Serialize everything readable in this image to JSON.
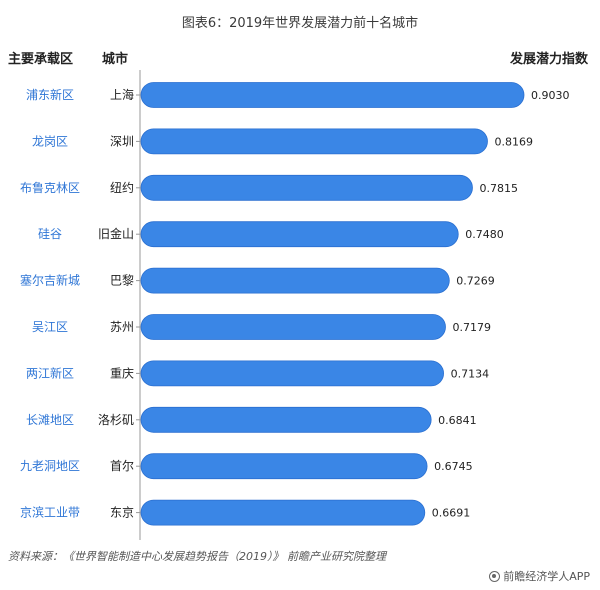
{
  "header": {
    "title": "图表6：2019年世界发展潜力前十名城市",
    "col_zone": "主要承载区",
    "col_city": "城市",
    "col_value": "发展潜力指数"
  },
  "colors": {
    "bar": "#3a86e6",
    "bar_edge": "#2a6fd0",
    "zone_text": "#2f76d6",
    "axis": "#999999"
  },
  "chart_data": {
    "type": "bar",
    "orientation": "horizontal",
    "title": "图表6：2019年世界发展潜力前十名城市",
    "categories": [
      "上海",
      "深圳",
      "纽约",
      "旧金山",
      "巴黎",
      "苏州",
      "重庆",
      "洛杉矶",
      "首尔",
      "东京"
    ],
    "zones": [
      "浦东新区",
      "龙岗区",
      "布鲁克林区",
      "硅谷",
      "塞尔吉新城",
      "吴江区",
      "两江新区",
      "长滩地区",
      "九老洞地区",
      "京滨工业带"
    ],
    "values": [
      0.903,
      0.8169,
      0.7815,
      0.748,
      0.7269,
      0.7179,
      0.7134,
      0.6841,
      0.6745,
      0.6691
    ],
    "value_labels": [
      "0.9030",
      "0.8169",
      "0.7815",
      "0.7480",
      "0.7269",
      "0.7179",
      "0.7134",
      "0.6841",
      "0.6745",
      "0.6691"
    ],
    "xlim": [
      0,
      0.903
    ],
    "grid": false
  },
  "footer": {
    "source": "资料来源：《世界智能制造中心发展趋势报告（2019）》 前瞻产业研究院整理",
    "brand": "前瞻经济学人APP"
  }
}
